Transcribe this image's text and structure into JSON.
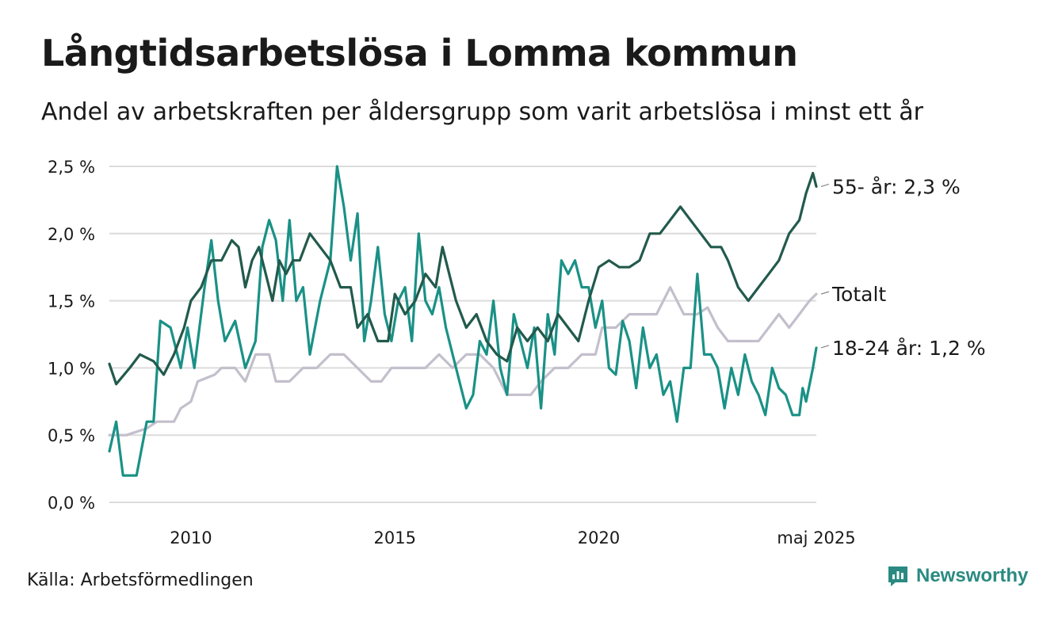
{
  "title": "Långtidsarbetslösa i Lomma kommun",
  "subtitle": "Andel av arbetskraften per åldersgrupp som varit arbetslösa i minst ett år",
  "source": "Källa: Arbetsförmedlingen",
  "brand": {
    "name": "Newsworthy",
    "icon": "newsworthy-logo-icon",
    "color": "#2a8a81"
  },
  "chart_data": {
    "type": "line",
    "y_tick_labels": [
      "0,0 %",
      "0,5 %",
      "1,0 %",
      "1,5 %",
      "2,0 %",
      "2,5 %"
    ],
    "y_ticks": [
      0,
      0.5,
      1.0,
      1.5,
      2.0,
      2.5
    ],
    "ylim": [
      0,
      2.5
    ],
    "xlim": [
      "2008-01",
      "2025-05"
    ],
    "x_ticks": [
      {
        "label": "2010",
        "date": "2010-01"
      },
      {
        "label": "2015",
        "date": "2015-01"
      },
      {
        "label": "2020",
        "date": "2020-01"
      },
      {
        "label": "maj 2025",
        "date": "2025-05"
      }
    ],
    "grid": "horizontal",
    "series": [
      {
        "id": "totalt",
        "end_label": "Totalt",
        "color": "#c3bfcc",
        "points": [
          [
            "2008-01",
            0.5
          ],
          [
            "2008-06",
            0.5
          ],
          [
            "2008-12",
            0.55
          ],
          [
            "2009-03",
            0.6
          ],
          [
            "2009-08",
            0.6
          ],
          [
            "2009-10",
            0.7
          ],
          [
            "2010-01",
            0.75
          ],
          [
            "2010-03",
            0.9
          ],
          [
            "2010-08",
            0.95
          ],
          [
            "2010-10",
            1.0
          ],
          [
            "2011-02",
            1.0
          ],
          [
            "2011-05",
            0.9
          ],
          [
            "2011-08",
            1.1
          ],
          [
            "2011-12",
            1.1
          ],
          [
            "2012-02",
            0.9
          ],
          [
            "2012-06",
            0.9
          ],
          [
            "2012-10",
            1.0
          ],
          [
            "2013-02",
            1.0
          ],
          [
            "2013-06",
            1.1
          ],
          [
            "2013-10",
            1.1
          ],
          [
            "2014-02",
            1.0
          ],
          [
            "2014-06",
            0.9
          ],
          [
            "2014-09",
            0.9
          ],
          [
            "2014-12",
            1.0
          ],
          [
            "2015-06",
            1.0
          ],
          [
            "2015-10",
            1.0
          ],
          [
            "2016-02",
            1.1
          ],
          [
            "2016-06",
            1.0
          ],
          [
            "2016-10",
            1.1
          ],
          [
            "2017-02",
            1.1
          ],
          [
            "2017-06",
            1.0
          ],
          [
            "2017-10",
            0.8
          ],
          [
            "2018-02",
            0.8
          ],
          [
            "2018-05",
            0.8
          ],
          [
            "2018-08",
            0.9
          ],
          [
            "2018-12",
            1.0
          ],
          [
            "2019-04",
            1.0
          ],
          [
            "2019-08",
            1.1
          ],
          [
            "2019-12",
            1.1
          ],
          [
            "2020-02",
            1.3
          ],
          [
            "2020-06",
            1.3
          ],
          [
            "2020-10",
            1.4
          ],
          [
            "2021-02",
            1.4
          ],
          [
            "2021-06",
            1.4
          ],
          [
            "2021-10",
            1.6
          ],
          [
            "2022-02",
            1.4
          ],
          [
            "2022-06",
            1.4
          ],
          [
            "2022-09",
            1.45
          ],
          [
            "2022-12",
            1.3
          ],
          [
            "2023-03",
            1.2
          ],
          [
            "2023-06",
            1.2
          ],
          [
            "2023-09",
            1.2
          ],
          [
            "2023-12",
            1.2
          ],
          [
            "2024-03",
            1.3
          ],
          [
            "2024-06",
            1.4
          ],
          [
            "2024-09",
            1.3
          ],
          [
            "2024-12",
            1.4
          ],
          [
            "2025-03",
            1.5
          ],
          [
            "2025-05",
            1.55
          ]
        ]
      },
      {
        "id": "age-18-24",
        "end_label": "18-24 år: 1,2 %",
        "color": "#1a9186",
        "points": [
          [
            "2008-01",
            0.38
          ],
          [
            "2008-03",
            0.6
          ],
          [
            "2008-05",
            0.2
          ],
          [
            "2008-09",
            0.2
          ],
          [
            "2008-12",
            0.6
          ],
          [
            "2009-02",
            0.6
          ],
          [
            "2009-04",
            1.35
          ],
          [
            "2009-07",
            1.3
          ],
          [
            "2009-10",
            1.0
          ],
          [
            "2009-12",
            1.3
          ],
          [
            "2010-02",
            1.0
          ],
          [
            "2010-05",
            1.6
          ],
          [
            "2010-07",
            1.95
          ],
          [
            "2010-09",
            1.5
          ],
          [
            "2010-11",
            1.2
          ],
          [
            "2011-02",
            1.35
          ],
          [
            "2011-05",
            1.0
          ],
          [
            "2011-08",
            1.2
          ],
          [
            "2011-10",
            1.9
          ],
          [
            "2011-12",
            2.1
          ],
          [
            "2012-02",
            1.95
          ],
          [
            "2012-04",
            1.5
          ],
          [
            "2012-06",
            2.1
          ],
          [
            "2012-08",
            1.5
          ],
          [
            "2012-10",
            1.6
          ],
          [
            "2012-12",
            1.1
          ],
          [
            "2013-03",
            1.5
          ],
          [
            "2013-06",
            1.8
          ],
          [
            "2013-08",
            2.5
          ],
          [
            "2013-10",
            2.2
          ],
          [
            "2013-12",
            1.8
          ],
          [
            "2014-02",
            2.15
          ],
          [
            "2014-04",
            1.2
          ],
          [
            "2014-06",
            1.5
          ],
          [
            "2014-08",
            1.9
          ],
          [
            "2014-10",
            1.4
          ],
          [
            "2014-12",
            1.2
          ],
          [
            "2015-02",
            1.5
          ],
          [
            "2015-04",
            1.6
          ],
          [
            "2015-06",
            1.2
          ],
          [
            "2015-08",
            2.0
          ],
          [
            "2015-10",
            1.5
          ],
          [
            "2015-12",
            1.4
          ],
          [
            "2016-02",
            1.6
          ],
          [
            "2016-04",
            1.3
          ],
          [
            "2016-06",
            1.1
          ],
          [
            "2016-08",
            0.9
          ],
          [
            "2016-10",
            0.7
          ],
          [
            "2016-12",
            0.8
          ],
          [
            "2017-02",
            1.2
          ],
          [
            "2017-04",
            1.1
          ],
          [
            "2017-06",
            1.5
          ],
          [
            "2017-08",
            1.0
          ],
          [
            "2017-10",
            0.8
          ],
          [
            "2017-12",
            1.4
          ],
          [
            "2018-02",
            1.2
          ],
          [
            "2018-04",
            1.0
          ],
          [
            "2018-06",
            1.3
          ],
          [
            "2018-08",
            0.7
          ],
          [
            "2018-10",
            1.4
          ],
          [
            "2018-12",
            1.1
          ],
          [
            "2019-02",
            1.8
          ],
          [
            "2019-04",
            1.7
          ],
          [
            "2019-06",
            1.8
          ],
          [
            "2019-08",
            1.6
          ],
          [
            "2019-10",
            1.6
          ],
          [
            "2019-12",
            1.3
          ],
          [
            "2020-02",
            1.5
          ],
          [
            "2020-04",
            1.0
          ],
          [
            "2020-06",
            0.95
          ],
          [
            "2020-08",
            1.35
          ],
          [
            "2020-10",
            1.2
          ],
          [
            "2020-12",
            0.85
          ],
          [
            "2021-02",
            1.3
          ],
          [
            "2021-04",
            1.0
          ],
          [
            "2021-06",
            1.1
          ],
          [
            "2021-08",
            0.8
          ],
          [
            "2021-10",
            0.9
          ],
          [
            "2021-12",
            0.6
          ],
          [
            "2022-02",
            1.0
          ],
          [
            "2022-04",
            1.0
          ],
          [
            "2022-06",
            1.7
          ],
          [
            "2022-08",
            1.1
          ],
          [
            "2022-10",
            1.1
          ],
          [
            "2022-12",
            1.0
          ],
          [
            "2023-02",
            0.7
          ],
          [
            "2023-04",
            1.0
          ],
          [
            "2023-06",
            0.8
          ],
          [
            "2023-08",
            1.1
          ],
          [
            "2023-10",
            0.9
          ],
          [
            "2023-12",
            0.8
          ],
          [
            "2024-02",
            0.65
          ],
          [
            "2024-04",
            1.0
          ],
          [
            "2024-06",
            0.85
          ],
          [
            "2024-08",
            0.8
          ],
          [
            "2024-10",
            0.65
          ],
          [
            "2024-12",
            0.65
          ],
          [
            "2025-01",
            0.85
          ],
          [
            "2025-02",
            0.75
          ],
          [
            "2025-04",
            1.0
          ],
          [
            "2025-05",
            1.15
          ]
        ]
      },
      {
        "id": "age-55",
        "end_label": "55- år: 2,3 %",
        "color": "#225a4c",
        "points": [
          [
            "2008-01",
            1.03
          ],
          [
            "2008-03",
            0.88
          ],
          [
            "2008-07",
            1.0
          ],
          [
            "2008-10",
            1.1
          ],
          [
            "2009-02",
            1.05
          ],
          [
            "2009-05",
            0.95
          ],
          [
            "2009-08",
            1.1
          ],
          [
            "2009-11",
            1.3
          ],
          [
            "2010-01",
            1.5
          ],
          [
            "2010-04",
            1.6
          ],
          [
            "2010-07",
            1.8
          ],
          [
            "2010-10",
            1.8
          ],
          [
            "2011-01",
            1.95
          ],
          [
            "2011-03",
            1.9
          ],
          [
            "2011-05",
            1.6
          ],
          [
            "2011-07",
            1.8
          ],
          [
            "2011-09",
            1.9
          ],
          [
            "2011-11",
            1.7
          ],
          [
            "2012-01",
            1.5
          ],
          [
            "2012-03",
            1.8
          ],
          [
            "2012-05",
            1.7
          ],
          [
            "2012-07",
            1.8
          ],
          [
            "2012-09",
            1.8
          ],
          [
            "2012-12",
            2.0
          ],
          [
            "2013-03",
            1.9
          ],
          [
            "2013-06",
            1.8
          ],
          [
            "2013-09",
            1.6
          ],
          [
            "2013-12",
            1.6
          ],
          [
            "2014-02",
            1.3
          ],
          [
            "2014-05",
            1.4
          ],
          [
            "2014-08",
            1.2
          ],
          [
            "2014-11",
            1.2
          ],
          [
            "2015-01",
            1.55
          ],
          [
            "2015-04",
            1.4
          ],
          [
            "2015-07",
            1.5
          ],
          [
            "2015-10",
            1.7
          ],
          [
            "2016-01",
            1.6
          ],
          [
            "2016-03",
            1.9
          ],
          [
            "2016-05",
            1.7
          ],
          [
            "2016-07",
            1.5
          ],
          [
            "2016-10",
            1.3
          ],
          [
            "2017-01",
            1.4
          ],
          [
            "2017-04",
            1.2
          ],
          [
            "2017-07",
            1.1
          ],
          [
            "2017-10",
            1.05
          ],
          [
            "2018-01",
            1.3
          ],
          [
            "2018-04",
            1.2
          ],
          [
            "2018-07",
            1.3
          ],
          [
            "2018-10",
            1.2
          ],
          [
            "2019-01",
            1.4
          ],
          [
            "2019-04",
            1.3
          ],
          [
            "2019-07",
            1.2
          ],
          [
            "2019-10",
            1.5
          ],
          [
            "2020-01",
            1.75
          ],
          [
            "2020-04",
            1.8
          ],
          [
            "2020-07",
            1.75
          ],
          [
            "2020-10",
            1.75
          ],
          [
            "2021-01",
            1.8
          ],
          [
            "2021-04",
            2.0
          ],
          [
            "2021-07",
            2.0
          ],
          [
            "2021-10",
            2.1
          ],
          [
            "2022-01",
            2.2
          ],
          [
            "2022-04",
            2.1
          ],
          [
            "2022-07",
            2.0
          ],
          [
            "2022-10",
            1.9
          ],
          [
            "2023-01",
            1.9
          ],
          [
            "2023-03",
            1.8
          ],
          [
            "2023-06",
            1.6
          ],
          [
            "2023-09",
            1.5
          ],
          [
            "2023-12",
            1.6
          ],
          [
            "2024-03",
            1.7
          ],
          [
            "2024-06",
            1.8
          ],
          [
            "2024-09",
            2.0
          ],
          [
            "2024-12",
            2.1
          ],
          [
            "2025-02",
            2.3
          ],
          [
            "2025-04",
            2.45
          ],
          [
            "2025-05",
            2.35
          ]
        ]
      }
    ]
  }
}
